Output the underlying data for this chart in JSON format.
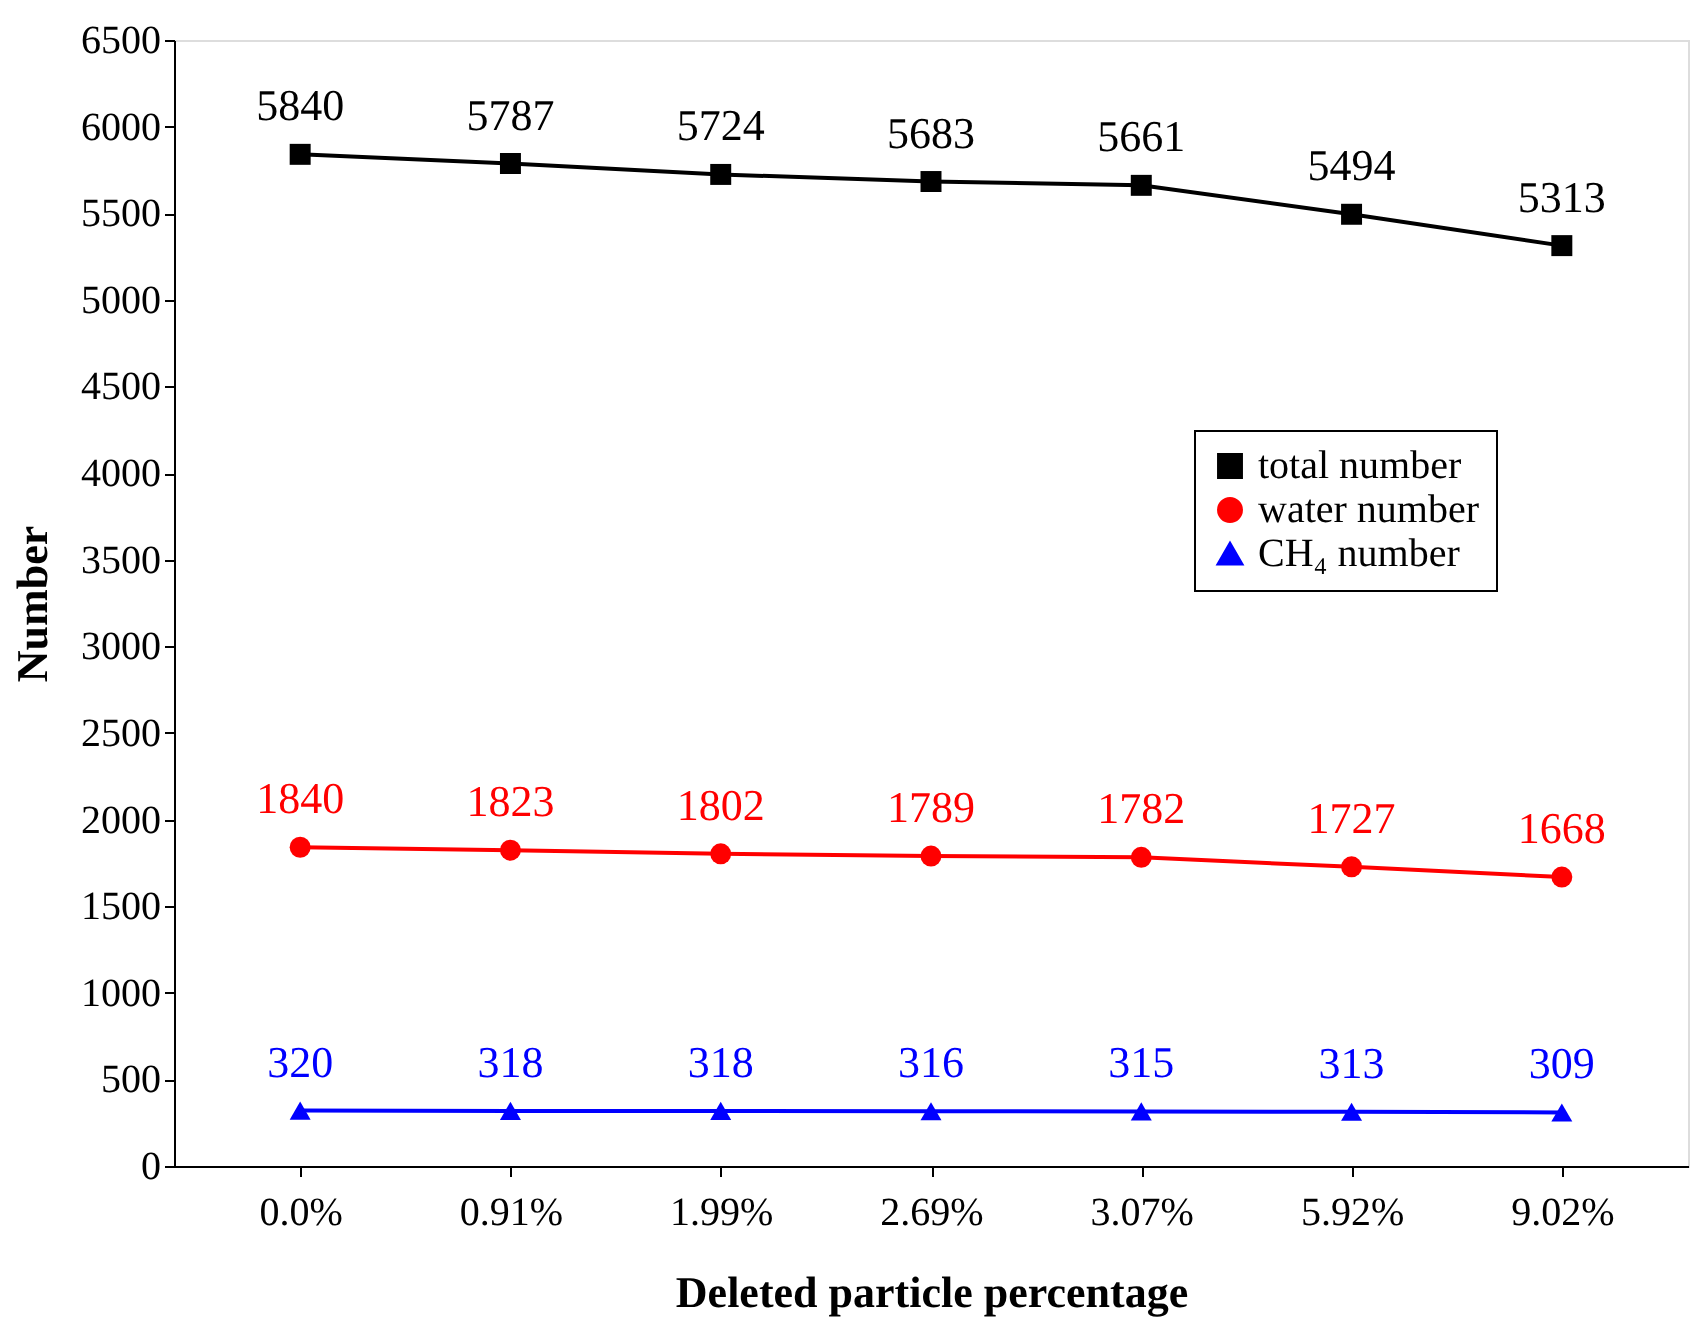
{
  "chart_data": {
    "type": "line",
    "xlabel": "Deleted particle percentage",
    "ylabel": "Number",
    "categories": [
      "0.0%",
      "0.91%",
      "1.99%",
      "2.69%",
      "3.07%",
      "5.92%",
      "9.02%"
    ],
    "series": [
      {
        "name": "total number",
        "color": "#000000",
        "marker": "square",
        "values": [
          5840,
          5787,
          5724,
          5683,
          5661,
          5494,
          5313
        ]
      },
      {
        "name": "water number",
        "color": "#ff0000",
        "marker": "circle",
        "values": [
          1840,
          1823,
          1802,
          1789,
          1782,
          1727,
          1668
        ]
      },
      {
        "name": "CH₄ number",
        "color": "#0000ff",
        "marker": "triangle",
        "values": [
          320,
          318,
          318,
          316,
          315,
          313,
          309
        ]
      }
    ],
    "ylim": [
      0,
      6500
    ],
    "yticks": [
      0,
      500,
      1000,
      1500,
      2000,
      2500,
      3000,
      3500,
      4000,
      4500,
      5000,
      5500,
      6000,
      6500
    ],
    "data_labels": true,
    "grid": false,
    "legend": "right",
    "line_style": "solid"
  }
}
